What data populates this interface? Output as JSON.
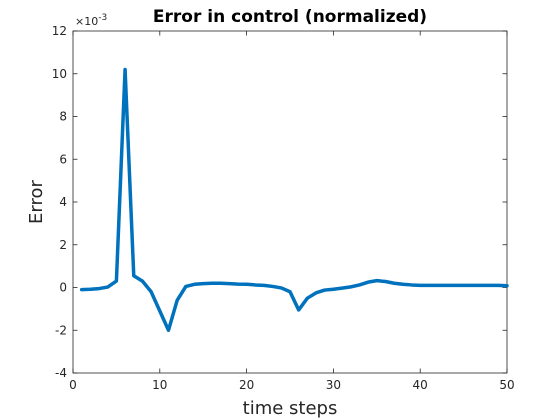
{
  "chart_data": {
    "type": "line",
    "title": "Error in control (normalized)",
    "xlabel": "time steps",
    "ylabel": "Error",
    "xlim": [
      0,
      50
    ],
    "ylim": [
      -0.004,
      0.012
    ],
    "x_ticks": [
      "0",
      "10",
      "20",
      "30",
      "40",
      "50"
    ],
    "y_ticks": [
      "-4",
      "-2",
      "0",
      "2",
      "4",
      "6",
      "8",
      "10",
      "12"
    ],
    "y_exponent": {
      "base": "×10",
      "power": "-3"
    },
    "grid": false,
    "series": [
      {
        "color": "#0072BD",
        "x": [
          1,
          2,
          3,
          4,
          5,
          6,
          7,
          8,
          9,
          10,
          11,
          12,
          13,
          14,
          15,
          16,
          17,
          18,
          19,
          20,
          21,
          22,
          23,
          24,
          25,
          26,
          27,
          28,
          29,
          30,
          31,
          32,
          33,
          34,
          35,
          36,
          37,
          38,
          39,
          40,
          41,
          42,
          43,
          44,
          45,
          46,
          47,
          48,
          49,
          50
        ],
        "y": [
          -0.0001,
          -8e-05,
          -5e-05,
          2e-05,
          0.0003,
          0.0102,
          0.00055,
          0.0003,
          -0.0002,
          -0.0011,
          -0.002,
          -0.0006,
          5e-05,
          0.00015,
          0.00018,
          0.0002,
          0.0002,
          0.00018,
          0.00016,
          0.00015,
          0.00012,
          0.0001,
          5e-05,
          -2e-05,
          -0.0002,
          -0.00105,
          -0.0005,
          -0.00025,
          -0.00012,
          -8e-05,
          -3e-05,
          3e-05,
          0.00012,
          0.00025,
          0.00032,
          0.00028,
          0.0002,
          0.00015,
          0.00012,
          0.0001,
          0.0001,
          0.0001,
          0.0001,
          0.0001,
          0.0001,
          0.0001,
          0.0001,
          0.0001,
          0.0001,
          8e-05
        ]
      }
    ]
  }
}
